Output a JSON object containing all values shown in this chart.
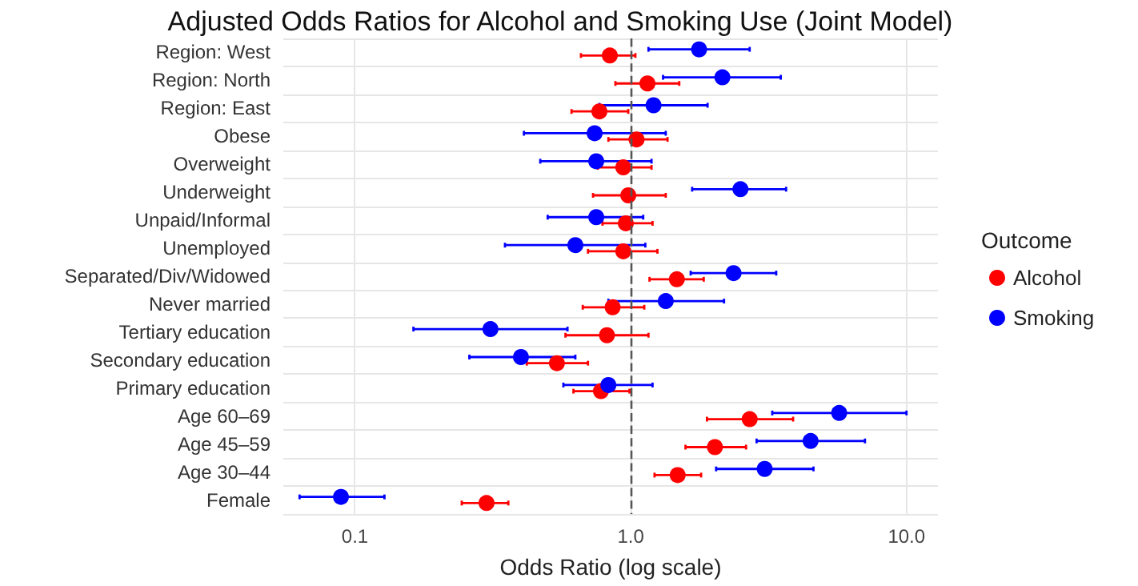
{
  "chart_data": {
    "type": "scatter",
    "title": "Adjusted Odds Ratios for Alcohol and Smoking Use (Joint Model)",
    "xlabel": "Odds Ratio (log scale)",
    "legend_title": "Outcome",
    "orientation": "horizontal",
    "categories": [
      "Region: West",
      "Region: North",
      "Region: East",
      "Obese",
      "Overweight",
      "Underweight",
      "Unpaid/Informal",
      "Unemployed",
      "Separated/Div/Widowed",
      "Never married",
      "Tertiary education",
      "Secondary education",
      "Primary education",
      "Age 60–69",
      "Age 45–59",
      "Age 30–44",
      "Female"
    ],
    "series": [
      {
        "name": "Alcohol",
        "color": "#ff0000",
        "values": [
          0.84,
          1.15,
          0.77,
          1.05,
          0.94,
          0.98,
          0.96,
          0.94,
          1.47,
          0.86,
          0.82,
          0.54,
          0.78,
          2.7,
          2.02,
          1.48,
          0.3
        ],
        "errors": [
          [
            0.66,
            1.04
          ],
          [
            0.88,
            1.5
          ],
          [
            0.61,
            0.98
          ],
          [
            0.83,
            1.36
          ],
          [
            0.76,
            1.19
          ],
          [
            0.73,
            1.34
          ],
          [
            0.79,
            1.2
          ],
          [
            0.7,
            1.25
          ],
          [
            1.17,
            1.84
          ],
          [
            0.67,
            1.12
          ],
          [
            0.58,
            1.16
          ],
          [
            0.42,
            0.7
          ],
          [
            0.62,
            0.99
          ],
          [
            1.89,
            3.88
          ],
          [
            1.58,
            2.62
          ],
          [
            1.22,
            1.8
          ],
          [
            0.244,
            0.36
          ]
        ]
      },
      {
        "name": "Smoking",
        "color": "#0000ff",
        "values": [
          1.77,
          2.15,
          1.21,
          0.74,
          0.75,
          2.5,
          0.75,
          0.63,
          2.36,
          1.34,
          0.31,
          0.4,
          0.83,
          5.7,
          4.49,
          3.06,
          0.089
        ],
        "errors": [
          [
            1.16,
            2.7
          ],
          [
            1.31,
            3.5
          ],
          [
            0.77,
            1.9
          ],
          [
            0.41,
            1.34
          ],
          [
            0.47,
            1.19
          ],
          [
            1.67,
            3.66
          ],
          [
            0.5,
            1.11
          ],
          [
            0.35,
            1.13
          ],
          [
            1.65,
            3.37
          ],
          [
            0.83,
            2.18
          ],
          [
            0.163,
            0.59
          ],
          [
            0.26,
            0.63
          ],
          [
            0.57,
            1.2
          ],
          [
            3.26,
            10.0
          ],
          [
            2.86,
            7.07
          ],
          [
            2.04,
            4.6
          ],
          [
            0.063,
            0.128
          ]
        ]
      }
    ],
    "xlim": [
      0.055,
      13
    ],
    "xticks": [
      0.1,
      {
        "value": 1,
        "label": "1.0"
      },
      {
        "value": 10,
        "label": "10.0"
      }
    ],
    "log": "x",
    "grid": true,
    "legend": "right",
    "marker": "circle",
    "ref_lines": [
      {
        "axis": "x",
        "value": 1,
        "color": "#555555",
        "line_style": "dashed"
      }
    ]
  }
}
